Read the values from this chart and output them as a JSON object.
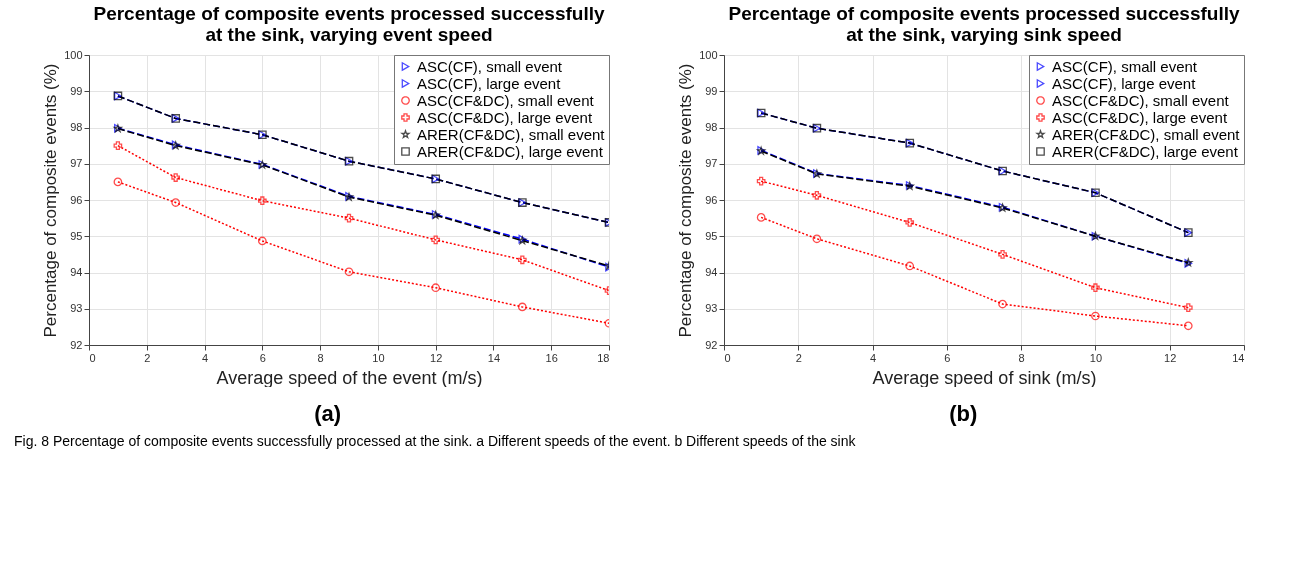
{
  "chart_data": [
    {
      "type": "line",
      "title": "Percentage of composite events processed successfully at the sink, varying event speed",
      "xlabel": "Average speed of the event (m/s)",
      "ylabel": "Percentage of composite events (%)",
      "x": [
        1,
        3,
        6,
        9,
        12,
        15,
        18
      ],
      "xlim": [
        0,
        18
      ],
      "xticks": [
        0,
        2,
        4,
        6,
        8,
        10,
        12,
        14,
        16,
        18
      ],
      "ylim": [
        92,
        100
      ],
      "yticks": [
        92,
        93,
        94,
        95,
        96,
        97,
        98,
        99,
        100
      ],
      "grid": true,
      "legend": "top right",
      "annotations": [
        "(a)",
        "Fig. 8 Percentage of composite events successfully processed at the sink. a Different speeds of the event. b Different speeds of the sink"
      ],
      "series": [
        {
          "name": "ASC(CF), small event",
          "color": "#0000ff",
          "marker": "triangle",
          "line_style": "dashed",
          "values": [
            97.98,
            97.52,
            96.98,
            96.1,
            95.6,
            94.92,
            94.15
          ]
        },
        {
          "name": "ASC(CF), large event",
          "color": "#0000ff",
          "marker": "triangle",
          "line_style": "dashed",
          "values": [
            98.87,
            98.25,
            97.8,
            97.07,
            96.58,
            95.93,
            95.38
          ]
        },
        {
          "name": "ASC(CF&DC), small event",
          "color": "#ff0000",
          "marker": "circle",
          "line_style": "dotted",
          "values": [
            96.5,
            95.93,
            94.87,
            94.02,
            93.58,
            93.05,
            92.6
          ]
        },
        {
          "name": "ASC(CF&DC), large event",
          "color": "#ff0000",
          "marker": "cross",
          "line_style": "dotted",
          "values": [
            97.5,
            96.62,
            95.98,
            95.5,
            94.9,
            94.35,
            93.5
          ]
        },
        {
          "name": "ARER(CF&DC), small event",
          "color": "#000000",
          "marker": "star",
          "line_style": "dashed",
          "values": [
            97.97,
            97.5,
            96.97,
            96.08,
            95.58,
            94.88,
            94.18
          ]
        },
        {
          "name": "ARER(CF&DC), large event",
          "color": "#000000",
          "marker": "square",
          "line_style": "dashed",
          "values": [
            98.87,
            98.25,
            97.8,
            97.07,
            96.58,
            95.93,
            95.38
          ]
        }
      ]
    },
    {
      "type": "line",
      "title": "Percentage of composite events processed successfully at the sink, varying sink speed",
      "xlabel": "Average speed of sink (m/s)",
      "ylabel": "Percentage of composite events (%)",
      "x": [
        1,
        2.5,
        5,
        7.5,
        10,
        12.5
      ],
      "xlim": [
        0,
        14
      ],
      "xticks": [
        0,
        2,
        4,
        6,
        8,
        10,
        12,
        14
      ],
      "ylim": [
        92,
        100
      ],
      "yticks": [
        92,
        93,
        94,
        95,
        96,
        97,
        98,
        99,
        100
      ],
      "grid": true,
      "legend": "top right",
      "annotations": [
        "(b)"
      ],
      "series": [
        {
          "name": "ASC(CF), small event",
          "color": "#0000ff",
          "marker": "triangle",
          "line_style": "dashed",
          "values": [
            97.37,
            96.73,
            96.4,
            95.8,
            95.0,
            94.25
          ]
        },
        {
          "name": "ASC(CF), large event",
          "color": "#0000ff",
          "marker": "triangle",
          "line_style": "dashed",
          "values": [
            98.4,
            97.98,
            97.57,
            96.8,
            96.2,
            95.1
          ]
        },
        {
          "name": "ASC(CF&DC), small event",
          "color": "#ff0000",
          "marker": "circle",
          "line_style": "dotted",
          "values": [
            95.52,
            94.93,
            94.18,
            93.13,
            92.8,
            92.53
          ]
        },
        {
          "name": "ASC(CF&DC), large event",
          "color": "#ff0000",
          "marker": "cross",
          "line_style": "dotted",
          "values": [
            96.52,
            96.13,
            95.38,
            94.5,
            93.58,
            93.03
          ]
        },
        {
          "name": "ARER(CF&DC), small event",
          "color": "#000000",
          "marker": "star",
          "line_style": "dashed",
          "values": [
            97.35,
            96.72,
            96.38,
            95.78,
            95.0,
            94.27
          ]
        },
        {
          "name": "ARER(CF&DC), large event",
          "color": "#000000",
          "marker": "square",
          "line_style": "dashed",
          "values": [
            98.4,
            97.98,
            97.57,
            96.8,
            96.2,
            95.1
          ]
        }
      ]
    }
  ]
}
